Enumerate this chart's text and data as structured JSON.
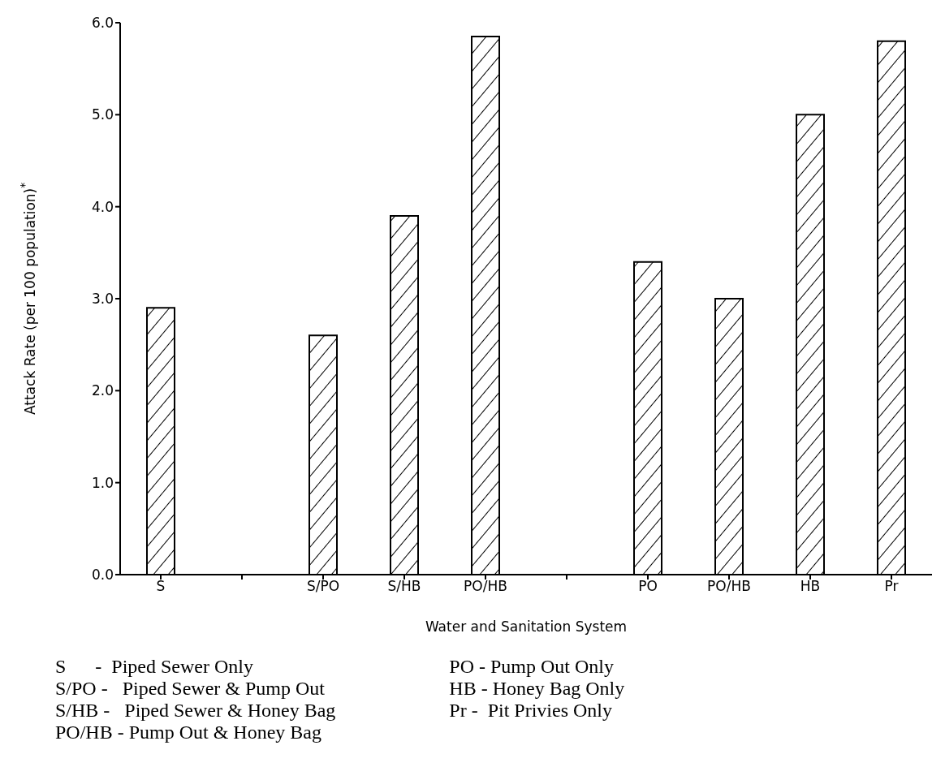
{
  "chart_data": {
    "type": "bar",
    "xlabel": "Water and Sanitation System",
    "ylabel": "Attack Rate (per 100 population)$^{*}$",
    "categories": [
      "S",
      null,
      "S/PO",
      "S/HB",
      "PO/HB",
      null,
      "PO",
      "PO/HB",
      "HB",
      "Pr"
    ],
    "values": [
      2.9,
      null,
      2.6,
      3.9,
      5.85,
      null,
      3.4,
      3.0,
      5.0,
      5.8
    ],
    "color": "#000000",
    "ylim": [
      0,
      6
    ],
    "yticks": [
      {
        "value": 0,
        "label": "0.0"
      },
      {
        "value": 1,
        "label": "1.0"
      },
      {
        "value": 2,
        "label": "2.0"
      },
      {
        "value": 3,
        "label": "3.0"
      },
      {
        "value": 4,
        "label": "4.0"
      },
      {
        "value": 5,
        "label": "5.0"
      },
      {
        "value": 6,
        "label": "6.0"
      }
    ],
    "grid": false,
    "legend": false,
    "annotations": [
      "S      -  Piped Sewer Only",
      "S/PO -   Piped Sewer & Pump Out",
      "S/HB -   Piped Sewer & Honey Bag",
      "PO/HB - Pump Out & Honey Bag",
      "PO - Pump Out Only",
      "HB - Honey Bag Only",
      "Pr -  Pit Privies Only"
    ]
  }
}
